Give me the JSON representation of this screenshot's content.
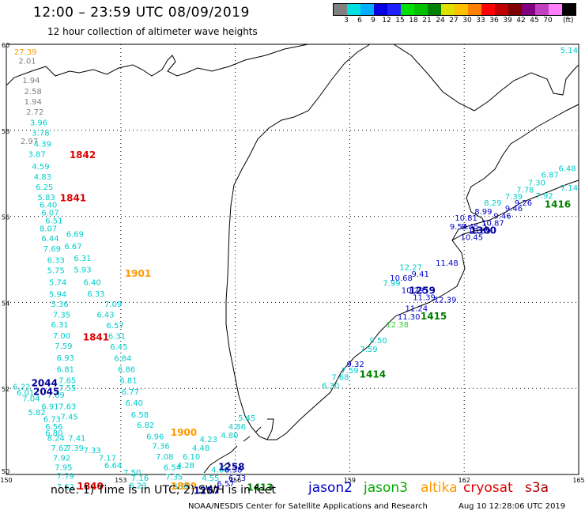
{
  "header": {
    "title": "12:00 – 23:59 UTC 08/09/2019",
    "subtitle": "12 hour collection of altimeter wave heights"
  },
  "legend": {
    "colors": [
      "#808080",
      "#00e0e0",
      "#00b0ff",
      "#0000e0",
      "#2020ff",
      "#00e000",
      "#00c000",
      "#008000",
      "#e0e000",
      "#ffc000",
      "#ff8000",
      "#ff0000",
      "#c00000",
      "#800000",
      "#800080",
      "#c040c0",
      "#ff80ff",
      "#000000"
    ],
    "labels": [
      "3",
      "6",
      "9",
      "12",
      "15",
      "18",
      "21",
      "24",
      "27",
      "30",
      "33",
      "36",
      "39",
      "42",
      "45",
      "70"
    ],
    "unit": "(ft)"
  },
  "map": {
    "lat_labels": [
      "60",
      "58",
      "56",
      "54",
      "52",
      "50"
    ],
    "lon_labels": [
      "150",
      "153",
      "156",
      "159",
      "162",
      "165"
    ],
    "lat_range": [
      50,
      60
    ],
    "lon_range": [
      150,
      165
    ],
    "grid": "dotted"
  },
  "observations": [
    {
      "lat": 59.76,
      "lon": 150.5,
      "v": "27.39",
      "c": "#ff9900"
    },
    {
      "lat": 59.55,
      "lon": 150.55,
      "v": "2.01",
      "c": "#808080"
    },
    {
      "lat": 59.1,
      "lon": 150.65,
      "v": "1.94",
      "c": "#808080"
    },
    {
      "lat": 58.84,
      "lon": 150.7,
      "v": "2.58",
      "c": "#808080"
    },
    {
      "lat": 58.6,
      "lon": 150.7,
      "v": "1.94",
      "c": "#808080"
    },
    {
      "lat": 58.36,
      "lon": 150.75,
      "v": "2.72",
      "c": "#808080"
    },
    {
      "lat": 58.12,
      "lon": 150.85,
      "v": "3.96",
      "c": "#00cccc"
    },
    {
      "lat": 57.88,
      "lon": 150.9,
      "v": "3.78",
      "c": "#00cccc"
    },
    {
      "lat": 57.68,
      "lon": 150.6,
      "v": "2.97",
      "c": "#808080"
    },
    {
      "lat": 57.62,
      "lon": 150.95,
      "v": "4.39",
      "c": "#00cccc"
    },
    {
      "lat": 57.38,
      "lon": 150.8,
      "v": "3.87",
      "c": "#00cccc"
    },
    {
      "lat": 57.1,
      "lon": 150.9,
      "v": "4.59",
      "c": "#00cccc"
    },
    {
      "lat": 56.86,
      "lon": 150.95,
      "v": "4.83",
      "c": "#00cccc"
    },
    {
      "lat": 56.62,
      "lon": 151.0,
      "v": "6.25",
      "c": "#00cccc"
    },
    {
      "lat": 56.38,
      "lon": 151.05,
      "v": "5.83",
      "c": "#00cccc"
    },
    {
      "lat": 56.2,
      "lon": 151.1,
      "v": "6.40",
      "c": "#00cccc"
    },
    {
      "lat": 56.02,
      "lon": 151.15,
      "v": "6.07",
      "c": "#00cccc"
    },
    {
      "lat": 55.84,
      "lon": 151.25,
      "v": "6.51",
      "c": "#00cccc"
    },
    {
      "lat": 55.65,
      "lon": 151.1,
      "v": "8.07",
      "c": "#00cccc"
    },
    {
      "lat": 55.42,
      "lon": 151.15,
      "v": "6.44",
      "c": "#00cccc"
    },
    {
      "lat": 55.52,
      "lon": 151.8,
      "v": "6.69",
      "c": "#00cccc"
    },
    {
      "lat": 55.18,
      "lon": 151.2,
      "v": "7.69",
      "c": "#00cccc"
    },
    {
      "lat": 55.24,
      "lon": 151.75,
      "v": "6.67",
      "c": "#00cccc"
    },
    {
      "lat": 54.92,
      "lon": 151.3,
      "v": "6.33",
      "c": "#00cccc"
    },
    {
      "lat": 54.96,
      "lon": 152.0,
      "v": "6.31",
      "c": "#00cccc"
    },
    {
      "lat": 54.68,
      "lon": 151.3,
      "v": "5.75",
      "c": "#00cccc"
    },
    {
      "lat": 54.7,
      "lon": 152.0,
      "v": "5.93",
      "c": "#00cccc"
    },
    {
      "lat": 54.4,
      "lon": 151.35,
      "v": "5.74",
      "c": "#00cccc"
    },
    {
      "lat": 54.4,
      "lon": 152.25,
      "v": "6.40",
      "c": "#00cccc"
    },
    {
      "lat": 54.13,
      "lon": 151.35,
      "v": "5.94",
      "c": "#00cccc"
    },
    {
      "lat": 54.14,
      "lon": 152.35,
      "v": "6.33",
      "c": "#00cccc"
    },
    {
      "lat": 53.9,
      "lon": 151.4,
      "v": "5.36",
      "c": "#00cccc"
    },
    {
      "lat": 53.9,
      "lon": 152.8,
      "v": "7.09",
      "c": "#00cccc"
    },
    {
      "lat": 53.65,
      "lon": 151.45,
      "v": "7.35",
      "c": "#00cccc"
    },
    {
      "lat": 53.65,
      "lon": 152.6,
      "v": "6.43",
      "c": "#00cccc"
    },
    {
      "lat": 53.42,
      "lon": 151.4,
      "v": "6.31",
      "c": "#00cccc"
    },
    {
      "lat": 53.4,
      "lon": 152.85,
      "v": "6.57",
      "c": "#00cccc"
    },
    {
      "lat": 53.16,
      "lon": 151.45,
      "v": "7.00",
      "c": "#00cccc"
    },
    {
      "lat": 53.15,
      "lon": 152.9,
      "v": "6.31",
      "c": "#00cccc"
    },
    {
      "lat": 52.92,
      "lon": 151.5,
      "v": "7.59",
      "c": "#00cccc"
    },
    {
      "lat": 52.9,
      "lon": 152.95,
      "v": "6.45",
      "c": "#00cccc"
    },
    {
      "lat": 52.65,
      "lon": 151.55,
      "v": "6.93",
      "c": "#00cccc"
    },
    {
      "lat": 52.64,
      "lon": 153.05,
      "v": "6.84",
      "c": "#00cccc"
    },
    {
      "lat": 52.38,
      "lon": 151.55,
      "v": "6.81",
      "c": "#00cccc"
    },
    {
      "lat": 52.38,
      "lon": 153.15,
      "v": "6.86",
      "c": "#00cccc"
    },
    {
      "lat": 52.12,
      "lon": 151.6,
      "v": "7.65",
      "c": "#00cccc"
    },
    {
      "lat": 52.12,
      "lon": 153.2,
      "v": "6.81",
      "c": "#00cccc"
    },
    {
      "lat": 51.95,
      "lon": 151.6,
      "v": "7.55",
      "c": "#00cccc"
    },
    {
      "lat": 51.98,
      "lon": 150.4,
      "v": "6.22",
      "c": "#00cccc"
    },
    {
      "lat": 51.84,
      "lon": 150.5,
      "v": "6.01",
      "c": "#00cccc"
    },
    {
      "lat": 51.86,
      "lon": 153.25,
      "v": "6.77",
      "c": "#00cccc"
    },
    {
      "lat": 51.78,
      "lon": 151.3,
      "v": "7.09",
      "c": "#00cccc"
    },
    {
      "lat": 51.7,
      "lon": 150.65,
      "v": "7.04",
      "c": "#00cccc"
    },
    {
      "lat": 51.6,
      "lon": 153.35,
      "v": "6.40",
      "c": "#00cccc"
    },
    {
      "lat": 51.52,
      "lon": 151.15,
      "v": "6.91",
      "c": "#00cccc"
    },
    {
      "lat": 51.52,
      "lon": 151.6,
      "v": "7.63",
      "c": "#00cccc"
    },
    {
      "lat": 51.38,
      "lon": 150.8,
      "v": "5.82",
      "c": "#00cccc"
    },
    {
      "lat": 51.32,
      "lon": 153.5,
      "v": "6.58",
      "c": "#00cccc"
    },
    {
      "lat": 51.28,
      "lon": 151.65,
      "v": "7.45",
      "c": "#00cccc"
    },
    {
      "lat": 51.22,
      "lon": 151.2,
      "v": "6.73",
      "c": "#00cccc"
    },
    {
      "lat": 51.08,
      "lon": 153.65,
      "v": "6.82",
      "c": "#00cccc"
    },
    {
      "lat": 51.05,
      "lon": 151.25,
      "v": "6.56",
      "c": "#00cccc"
    },
    {
      "lat": 50.9,
      "lon": 151.25,
      "v": "6.80",
      "c": "#00cccc"
    },
    {
      "lat": 50.82,
      "lon": 153.9,
      "v": "6.96",
      "c": "#00cccc"
    },
    {
      "lat": 50.78,
      "lon": 151.3,
      "v": "8.24",
      "c": "#00cccc"
    },
    {
      "lat": 50.78,
      "lon": 151.85,
      "v": "7.41",
      "c": "#00cccc"
    },
    {
      "lat": 50.6,
      "lon": 154.05,
      "v": "7.36",
      "c": "#00cccc"
    },
    {
      "lat": 50.55,
      "lon": 151.4,
      "v": "7.62",
      "c": "#00cccc"
    },
    {
      "lat": 50.55,
      "lon": 151.8,
      "v": "7.39",
      "c": "#00cccc"
    },
    {
      "lat": 50.5,
      "lon": 152.25,
      "v": "7.33",
      "c": "#00cccc"
    },
    {
      "lat": 50.32,
      "lon": 151.45,
      "v": "7.92",
      "c": "#00cccc"
    },
    {
      "lat": 50.32,
      "lon": 152.65,
      "v": "7.17",
      "c": "#00cccc"
    },
    {
      "lat": 50.35,
      "lon": 154.15,
      "v": "7.08",
      "c": "#00cccc"
    },
    {
      "lat": 50.1,
      "lon": 151.5,
      "v": "7.95",
      "c": "#00cccc"
    },
    {
      "lat": 50.15,
      "lon": 152.8,
      "v": "6.64",
      "c": "#00cccc"
    },
    {
      "lat": 50.1,
      "lon": 154.35,
      "v": "6.54",
      "c": "#00cccc"
    },
    {
      "lat": 49.98,
      "lon": 153.3,
      "v": "7.50",
      "c": "#00cccc"
    },
    {
      "lat": 49.9,
      "lon": 151.55,
      "v": "7.79",
      "c": "#00cccc"
    },
    {
      "lat": 49.85,
      "lon": 153.5,
      "v": "7.16",
      "c": "#00cccc"
    },
    {
      "lat": 49.88,
      "lon": 154.4,
      "v": "7.35",
      "c": "#00cccc"
    },
    {
      "lat": 49.65,
      "lon": 151.55,
      "v": "7.62",
      "c": "#00cccc"
    },
    {
      "lat": 49.68,
      "lon": 153.45,
      "v": "6.23",
      "c": "#00cccc"
    },
    {
      "lat": 49.66,
      "lon": 154.6,
      "v": "6.58",
      "c": "#00cccc"
    },
    {
      "lat": 54.85,
      "lon": 161.55,
      "v": "11.48",
      "c": "#0000cc"
    },
    {
      "lat": 54.75,
      "lon": 160.6,
      "v": "12.27",
      "c": "#00cccc"
    },
    {
      "lat": 54.6,
      "lon": 160.85,
      "v": "9.41",
      "c": "#0000cc"
    },
    {
      "lat": 54.5,
      "lon": 160.35,
      "v": "10.68",
      "c": "#0000cc"
    },
    {
      "lat": 54.38,
      "lon": 160.1,
      "v": "7.99",
      "c": "#00cccc"
    },
    {
      "lat": 54.22,
      "lon": 160.65,
      "v": "10.29",
      "c": "#0000cc"
    },
    {
      "lat": 54.05,
      "lon": 160.95,
      "v": "11.39",
      "c": "#0000cc"
    },
    {
      "lat": 53.8,
      "lon": 160.75,
      "v": "11.24",
      "c": "#0000cc"
    },
    {
      "lat": 53.6,
      "lon": 160.55,
      "v": "11.30",
      "c": "#0000cc"
    },
    {
      "lat": 53.42,
      "lon": 160.25,
      "v": "12.38",
      "c": "#33cc33"
    },
    {
      "lat": 54.0,
      "lon": 161.5,
      "v": "12.39",
      "c": "#0000cc"
    },
    {
      "lat": 53.05,
      "lon": 159.75,
      "v": "9.50",
      "c": "#00cccc"
    },
    {
      "lat": 52.85,
      "lon": 159.5,
      "v": "7.59",
      "c": "#00cccc"
    },
    {
      "lat": 52.5,
      "lon": 159.15,
      "v": "9.32",
      "c": "#0000cc"
    },
    {
      "lat": 52.35,
      "lon": 159.0,
      "v": "7.59",
      "c": "#00cccc"
    },
    {
      "lat": 52.2,
      "lon": 158.75,
      "v": "7.68",
      "c": "#00cccc"
    },
    {
      "lat": 52.0,
      "lon": 158.5,
      "v": "6.30",
      "c": "#00cccc"
    },
    {
      "lat": 50.75,
      "lon": 155.3,
      "v": "4.23",
      "c": "#00cccc"
    },
    {
      "lat": 50.55,
      "lon": 155.1,
      "v": "4.48",
      "c": "#00cccc"
    },
    {
      "lat": 50.35,
      "lon": 154.85,
      "v": "6.10",
      "c": "#00cccc"
    },
    {
      "lat": 50.15,
      "lon": 154.7,
      "v": "4.28",
      "c": "#00cccc"
    },
    {
      "lat": 51.25,
      "lon": 156.3,
      "v": "5.45",
      "c": "#00cccc"
    },
    {
      "lat": 51.05,
      "lon": 156.05,
      "v": "4.86",
      "c": "#00cccc"
    },
    {
      "lat": 50.85,
      "lon": 155.85,
      "v": "4.80",
      "c": "#00cccc"
    },
    {
      "lat": 50.05,
      "lon": 155.6,
      "v": "4.66",
      "c": "#00cccc"
    },
    {
      "lat": 49.85,
      "lon": 155.35,
      "v": "4.55",
      "c": "#00cccc"
    },
    {
      "lat": 50.05,
      "lon": 155.95,
      "v": "6.38",
      "c": "#0000cc"
    },
    {
      "lat": 49.85,
      "lon": 156.05,
      "v": "6.73",
      "c": "#0000cc"
    },
    {
      "lat": 49.72,
      "lon": 155.75,
      "v": "6.57",
      "c": "#0000cc"
    },
    {
      "lat": 55.7,
      "lon": 161.85,
      "v": "9.54",
      "c": "#0000cc"
    },
    {
      "lat": 55.9,
      "lon": 162.05,
      "v": "10.81",
      "c": "#0000cc"
    },
    {
      "lat": 56.05,
      "lon": 162.5,
      "v": "8.99",
      "c": "#0000cc"
    },
    {
      "lat": 55.6,
      "lon": 162.4,
      "v": "10.39",
      "c": "#0000cc"
    },
    {
      "lat": 55.45,
      "lon": 162.2,
      "v": "10.45",
      "c": "#0000cc"
    },
    {
      "lat": 55.78,
      "lon": 162.75,
      "v": "10.87",
      "c": "#0000cc"
    },
    {
      "lat": 55.95,
      "lon": 163.0,
      "v": "9.46",
      "c": "#0000cc"
    },
    {
      "lat": 55.7,
      "lon": 162.15,
      "v": "9.45",
      "c": "#0000cc"
    },
    {
      "lat": 56.25,
      "lon": 162.75,
      "v": "8.29",
      "c": "#00cccc"
    },
    {
      "lat": 56.12,
      "lon": 163.3,
      "v": "9.46",
      "c": "#0000cc"
    },
    {
      "lat": 56.4,
      "lon": 163.3,
      "v": "7.39",
      "c": "#00cccc"
    },
    {
      "lat": 56.55,
      "lon": 163.6,
      "v": "7.78",
      "c": "#00cccc"
    },
    {
      "lat": 56.72,
      "lon": 163.9,
      "v": "7.30",
      "c": "#00cccc"
    },
    {
      "lat": 56.25,
      "lon": 163.55,
      "v": "9.26",
      "c": "#0000cc"
    },
    {
      "lat": 56.42,
      "lon": 164.1,
      "v": "7.92",
      "c": "#00cccc"
    },
    {
      "lat": 56.9,
      "lon": 164.25,
      "v": "6.87",
      "c": "#00cccc"
    },
    {
      "lat": 57.05,
      "lon": 164.7,
      "v": "6.48",
      "c": "#00cccc"
    },
    {
      "lat": 56.6,
      "lon": 164.75,
      "v": "7.14",
      "c": "#00cccc"
    },
    {
      "lat": 59.8,
      "lon": 164.75,
      "v": "5.14",
      "c": "#00cccc"
    }
  ],
  "times": [
    {
      "lat": 57.35,
      "lon": 152.0,
      "v": "1842",
      "c": "#dd0000"
    },
    {
      "lat": 56.35,
      "lon": 151.75,
      "v": "1841",
      "c": "#dd0000"
    },
    {
      "lat": 54.6,
      "lon": 153.45,
      "v": "1901",
      "c": "#ff9900"
    },
    {
      "lat": 53.12,
      "lon": 152.35,
      "v": "1841",
      "c": "#dd0000"
    },
    {
      "lat": 52.05,
      "lon": 151.0,
      "v": "2044",
      "c": "#000099"
    },
    {
      "lat": 51.85,
      "lon": 151.05,
      "v": "2045",
      "c": "#000099"
    },
    {
      "lat": 50.9,
      "lon": 154.65,
      "v": "1900",
      "c": "#ff9900"
    },
    {
      "lat": 49.65,
      "lon": 152.2,
      "v": "1840",
      "c": "#dd0000"
    },
    {
      "lat": 49.65,
      "lon": 154.65,
      "v": "1859",
      "c": "#ff9900"
    },
    {
      "lat": 49.55,
      "lon": 155.25,
      "v": "1257",
      "c": "#000099"
    },
    {
      "lat": 50.1,
      "lon": 155.9,
      "v": "1258",
      "c": "#000099"
    },
    {
      "lat": 49.62,
      "lon": 156.65,
      "v": "1413",
      "c": "#008000"
    },
    {
      "lat": 54.2,
      "lon": 160.9,
      "v": "1259",
      "c": "#000099"
    },
    {
      "lat": 53.6,
      "lon": 161.2,
      "v": "1415",
      "c": "#008000"
    },
    {
      "lat": 52.25,
      "lon": 159.6,
      "v": "1414",
      "c": "#008000"
    },
    {
      "lat": 55.6,
      "lon": 162.5,
      "v": "1300",
      "c": "#000099"
    },
    {
      "lat": 56.2,
      "lon": 164.45,
      "v": "1416",
      "c": "#008000"
    }
  ],
  "footer": {
    "note": "note:  1)  Time is in UTC;  2)  SWH is in feet",
    "satellites": [
      {
        "name": "jason2",
        "color": "#0000cc"
      },
      {
        "name": "jason3",
        "color": "#00aa00"
      },
      {
        "name": "altika",
        "color": "#ff9900"
      },
      {
        "name": "cryosat",
        "color": "#dd0000"
      },
      {
        "name": "s3a",
        "color": "#aa0000"
      }
    ],
    "credit": "NOAA/NESDIS Center for Satellite Applications and Research",
    "stamp": "Aug 10 12:28:06 UTC 2019"
  }
}
